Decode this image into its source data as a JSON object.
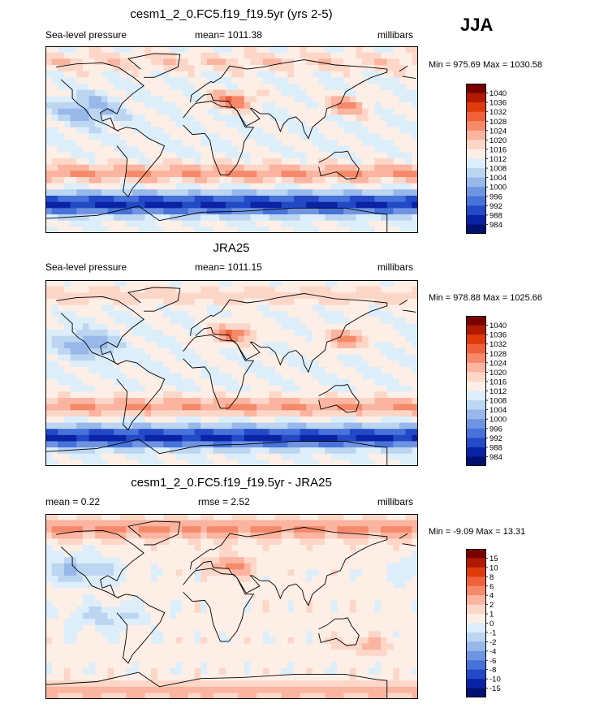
{
  "season": "JJA",
  "chart_data": [
    {
      "type": "heatmap",
      "title": "cesm1_2_0.FC5.f19_f19.5yr (yrs 2-5)",
      "left_label": "Sea-level pressure",
      "center_label": "mean= 1011.38",
      "right_label": "millibars",
      "minmax": "Min = 975.69 Max = 1030.58",
      "colorbar": {
        "labels": [
          "1040",
          "1036",
          "1032",
          "1028",
          "1024",
          "1020",
          "1016",
          "1012",
          "1008",
          "1004",
          "1000",
          "996",
          "992",
          "988",
          "984"
        ],
        "colors": [
          "#7a0000",
          "#b21a00",
          "#de3a0a",
          "#f0603a",
          "#f58a6a",
          "#fab4a0",
          "#fcd7c7",
          "#fdeee6",
          "#ddeefb",
          "#bcd6f2",
          "#98b8ea",
          "#6f95e2",
          "#4672d9",
          "#2349c6",
          "#0a23a6",
          "#001070"
        ]
      },
      "extremes": {
        "min": 975.69,
        "max": 1030.58
      }
    },
    {
      "type": "heatmap",
      "title": "JRA25",
      "left_label": "Sea-level pressure",
      "center_label": "mean= 1011.15",
      "right_label": "millibars",
      "minmax": "Min = 978.88 Max = 1025.66",
      "colorbar": {
        "labels": [
          "1040",
          "1036",
          "1032",
          "1028",
          "1024",
          "1020",
          "1016",
          "1012",
          "1008",
          "1004",
          "1000",
          "996",
          "992",
          "988",
          "984"
        ],
        "colors": [
          "#7a0000",
          "#b21a00",
          "#de3a0a",
          "#f0603a",
          "#f58a6a",
          "#fab4a0",
          "#fcd7c7",
          "#fdeee6",
          "#ddeefb",
          "#bcd6f2",
          "#98b8ea",
          "#6f95e2",
          "#4672d9",
          "#2349c6",
          "#0a23a6",
          "#001070"
        ]
      },
      "extremes": {
        "min": 978.88,
        "max": 1025.66
      }
    },
    {
      "type": "heatmap",
      "title": "cesm1_2_0.FC5.f19_f19.5yr - JRA25",
      "left_label": "mean =   0.22",
      "center_label": "rmse =   2.52",
      "right_label": "millibars",
      "minmax": "Min =  -9.09 Max =  13.31",
      "colorbar": {
        "labels": [
          "15",
          "10",
          "8",
          "6",
          "4",
          "2",
          "1",
          "0",
          "-1",
          "-2",
          "-4",
          "-6",
          "-8",
          "-10",
          "-15"
        ],
        "colors": [
          "#7a0000",
          "#b21a00",
          "#de3a0a",
          "#f0603a",
          "#f58a6a",
          "#fab4a0",
          "#fcd7c7",
          "#fdeee6",
          "#ddeefb",
          "#bcd6f2",
          "#98b8ea",
          "#6f95e2",
          "#4672d9",
          "#2349c6",
          "#0a23a6",
          "#001070"
        ]
      },
      "extremes": {
        "min": -9.09,
        "max": 13.31
      }
    }
  ]
}
